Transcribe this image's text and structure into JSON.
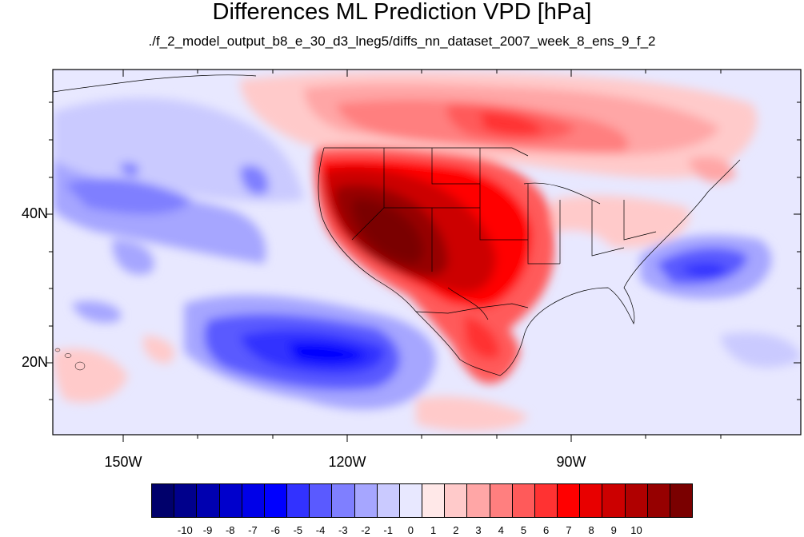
{
  "title": "Differences ML Prediction VPD [hPa]",
  "subtitle": "./f_2_model_output_b8_e_30_d3_lneg5/diffs_nn_dataset_2007_week_8_ens_9_f_2",
  "map": {
    "lon_ticks": [
      "150W",
      "120W",
      "90W"
    ],
    "lat_ticks": [
      "40N",
      "20N"
    ]
  },
  "colorbar": {
    "colors": [
      "#00006b",
      "#00008c",
      "#0000b0",
      "#0000cc",
      "#0000e8",
      "#0000ff",
      "#3232ff",
      "#5a5aff",
      "#7f7fff",
      "#a6a6ff",
      "#cacaff",
      "#e8e8ff",
      "#ffe8e8",
      "#ffcaca",
      "#ffa6a6",
      "#ff7f7f",
      "#ff5a5a",
      "#ff3232",
      "#ff0000",
      "#e80000",
      "#cc0000",
      "#b00000",
      "#960000",
      "#7a0000"
    ],
    "labels": [
      "-10",
      "-9",
      "-8",
      "-7",
      "-6",
      "-5",
      "-4",
      "-3",
      "-2",
      "-1",
      "0",
      "1",
      "2",
      "3",
      "4",
      "5",
      "6",
      "7",
      "8",
      "9",
      "10"
    ]
  }
}
